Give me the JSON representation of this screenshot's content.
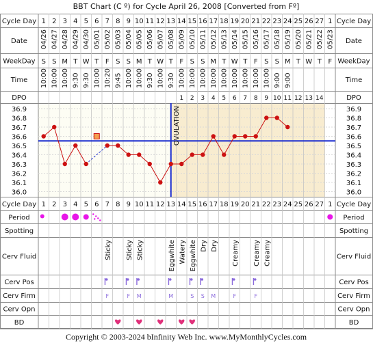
{
  "title": "BBT Chart (C º) for Cycle April 26, 2008  [Converted from Fº]",
  "footer": "Copyright © 2003-2024 bInfinity Web Inc.    www.MyMonthlyCycles.com",
  "row_labels": {
    "cycle_day": "Cycle Day",
    "date": "Date",
    "weekday": "WeekDay",
    "time": "Time",
    "dpo": "DPO",
    "period": "Period",
    "spotting": "Spotting",
    "cerv_fluid": "Cerv Fluid",
    "cerv_pos": "Cerv Pos",
    "cerv_firm": "Cerv Firm",
    "cerv_opn": "Cerv Opn",
    "bd": "BD"
  },
  "ovulation_label": "OVULATION",
  "colors": {
    "frame": "#8a8a8a",
    "temp_line": "#cc1111",
    "coverline": "#1a2ccf",
    "ovulation": "#1a2ccf",
    "pre_ov_bg": "#fdfdf4",
    "post_ov_bg": "#f8ecd0",
    "period": "#e815e8",
    "pos": "#8a6adc",
    "bd": "#e0307a"
  },
  "chart_data": {
    "type": "line",
    "cycle_days": [
      "1",
      "2",
      "3",
      "4",
      "5",
      "6",
      "7",
      "8",
      "9",
      "10",
      "11",
      "12",
      "13",
      "14",
      "15",
      "16",
      "17",
      "18",
      "19",
      "20",
      "21",
      "22",
      "23",
      "24",
      "25",
      "26",
      "27",
      "1"
    ],
    "dates": [
      "04/26",
      "04/27",
      "04/28",
      "04/29",
      "04/30",
      "05/01",
      "05/02",
      "05/03",
      "05/04",
      "05/05",
      "05/06",
      "05/07",
      "05/08",
      "05/09",
      "05/10",
      "05/11",
      "05/12",
      "05/13",
      "05/14",
      "05/15",
      "05/16",
      "05/17",
      "05/18",
      "05/19",
      "05/20",
      "05/21",
      "05/22",
      "05/23"
    ],
    "weekdays": [
      "S",
      "S",
      "M",
      "T",
      "W",
      "T",
      "F",
      "S",
      "S",
      "M",
      "T",
      "W",
      "T",
      "F",
      "S",
      "S",
      "M",
      "T",
      "W",
      "T",
      "F",
      "S",
      "S",
      "M",
      "T",
      "W",
      "T",
      "F"
    ],
    "times": [
      "10:00",
      "10:00",
      "10:00",
      "9:30",
      "9:30",
      "10:00",
      "10:20",
      "9:45",
      "10:00",
      "10:00",
      "9:30",
      "10:00",
      "9:30",
      "10:00",
      "10:00",
      "10:00",
      "10:00",
      "10:00",
      "10:00",
      "10:00",
      "10:00",
      "10:00",
      "9:00",
      "9:00",
      "",
      "",
      "",
      ""
    ],
    "dpo": [
      "",
      "",
      "",
      "",
      "",
      "",
      "",
      "",
      "",
      "",
      "",
      "",
      "",
      "1",
      "2",
      "3",
      "4",
      "5",
      "6",
      "7",
      "8",
      "9",
      "10",
      "11",
      "12",
      "13",
      "14",
      ""
    ],
    "y_ticks": [
      "36.9",
      "36.8",
      "36.7",
      "36.6",
      "36.5",
      "36.4",
      "36.3",
      "36.2",
      "36.1",
      "36.0"
    ],
    "ylim": [
      36.0,
      36.9
    ],
    "temps": [
      36.6,
      36.7,
      36.3,
      36.5,
      36.3,
      null,
      36.5,
      36.5,
      36.4,
      36.4,
      36.3,
      36.1,
      36.3,
      36.3,
      36.4,
      36.4,
      36.6,
      36.4,
      36.6,
      36.6,
      36.6,
      36.8,
      36.8,
      36.7,
      null,
      null,
      null,
      null
    ],
    "temp_line_breaks_after": [
      4
    ],
    "discarded_points": [
      {
        "index": 5,
        "value": 36.6
      }
    ],
    "dashed_link": [
      4,
      6
    ],
    "coverline": 36.55,
    "ovulation_day_index": 12,
    "period": [
      "heavy-dot",
      "",
      "big",
      "big",
      "medium",
      "tiny-dots",
      "",
      "",
      "",
      "",
      "",
      "",
      "",
      "",
      "",
      "",
      "",
      "",
      "",
      "",
      "",
      "",
      "",
      "",
      "",
      "",
      "",
      "medium"
    ],
    "cerv_fluid": [
      "",
      "",
      "",
      "",
      "",
      "",
      "Sticky",
      "",
      "Sticky",
      "Sticky",
      "",
      "",
      "Eggwhite",
      "Watery",
      "Eggwhite",
      "Dry",
      "Dry",
      "",
      "Creamy",
      "",
      "Creamy",
      "Creamy",
      "",
      "",
      "",
      "",
      "",
      ""
    ],
    "cerv_pos_marks": [
      "",
      "",
      "",
      "",
      "",
      "",
      "mark",
      "",
      "mark",
      "mark",
      "",
      "",
      "mark",
      "",
      "mark",
      "mark",
      "",
      "",
      "mark",
      "",
      "mark",
      "",
      "",
      "",
      "",
      "",
      "",
      ""
    ],
    "cerv_firm": [
      "",
      "",
      "",
      "",
      "",
      "",
      "F",
      "",
      "F",
      "M",
      "",
      "",
      "M",
      "",
      "S",
      "S",
      "M",
      "",
      "F",
      "",
      "F",
      "",
      "",
      "",
      "",
      "",
      "",
      ""
    ],
    "cerv_opn": [
      "",
      "",
      "",
      "",
      "",
      "",
      "",
      "",
      "",
      "",
      "",
      "",
      "",
      "",
      "",
      "",
      "",
      "",
      "",
      "",
      "",
      "",
      "",
      "",
      "",
      "",
      "",
      ""
    ],
    "bd": [
      "",
      "",
      "",
      "",
      "",
      "",
      "",
      "heart",
      "",
      "heart",
      "",
      "heart",
      "",
      "heart",
      "heart",
      "",
      "",
      "",
      "",
      "",
      "",
      "",
      "",
      "",
      "",
      "",
      "",
      ""
    ]
  }
}
